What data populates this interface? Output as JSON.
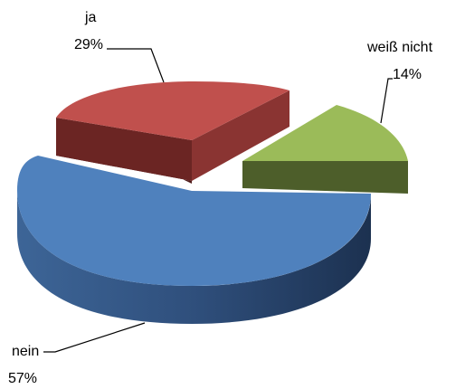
{
  "chart_data": {
    "type": "pie",
    "style": "3d-exploded",
    "title": "",
    "slices": [
      {
        "label": "ja",
        "value": 29,
        "value_label": "29%",
        "color": "#c0504d",
        "side_color": "#5c1e1d"
      },
      {
        "label": "weiß nicht",
        "value": 14,
        "value_label": "14%",
        "color": "#9bbb59",
        "side_color": "#4d5e2a"
      },
      {
        "label": "nein",
        "value": 57,
        "value_label": "57%",
        "color": "#4f81bd",
        "side_color": "#2e4e78"
      }
    ]
  }
}
